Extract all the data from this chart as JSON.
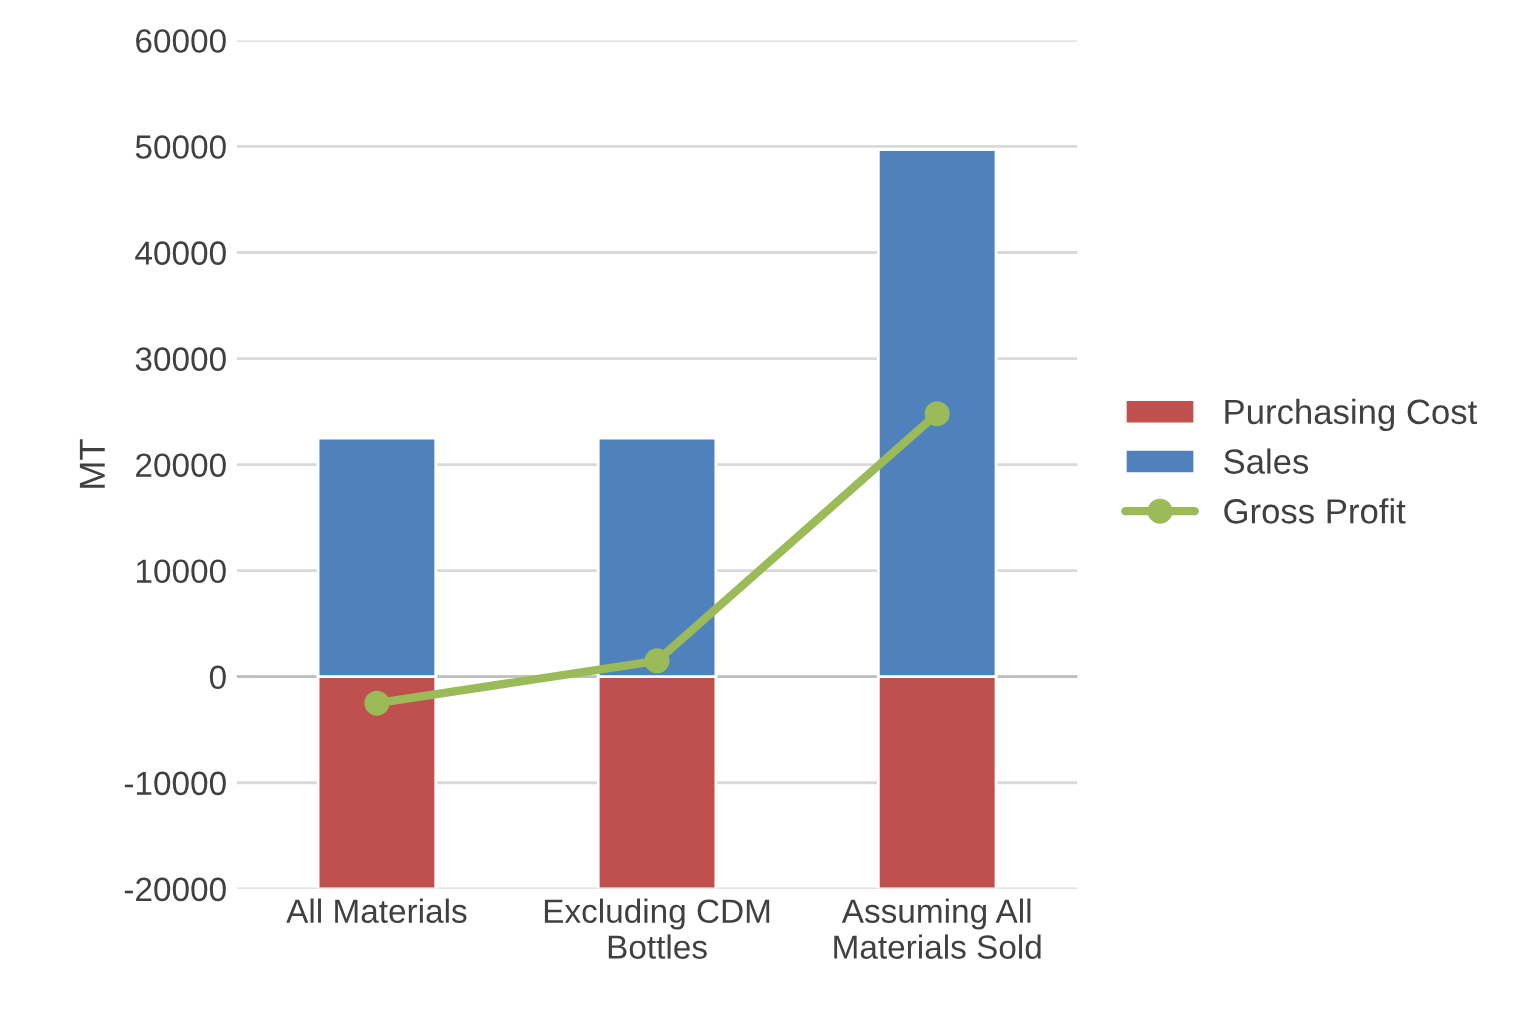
{
  "chart_data": {
    "type": "bar",
    "stacked": true,
    "ylabel": "MT",
    "categories": [
      "All Materials",
      "Excluding CDM\nBottles",
      "Assuming All\nMaterials Sold"
    ],
    "series": [
      {
        "name": "Purchasing Cost",
        "color": "#c0504d",
        "values": [
          -20000,
          -20000,
          -20000
        ]
      },
      {
        "name": "Sales",
        "color": "#4f81bd",
        "values": [
          22500,
          22500,
          49700
        ]
      },
      {
        "name": "Gross Profit",
        "type": "line",
        "color": "#9bbb59",
        "marker": "circle",
        "values": [
          -2500,
          1500,
          24800
        ]
      }
    ],
    "ylim": [
      -20000,
      60000
    ],
    "yticks": [
      -20000,
      -10000,
      0,
      10000,
      20000,
      30000,
      40000,
      50000,
      60000
    ],
    "grid": "y",
    "legend": "right"
  }
}
